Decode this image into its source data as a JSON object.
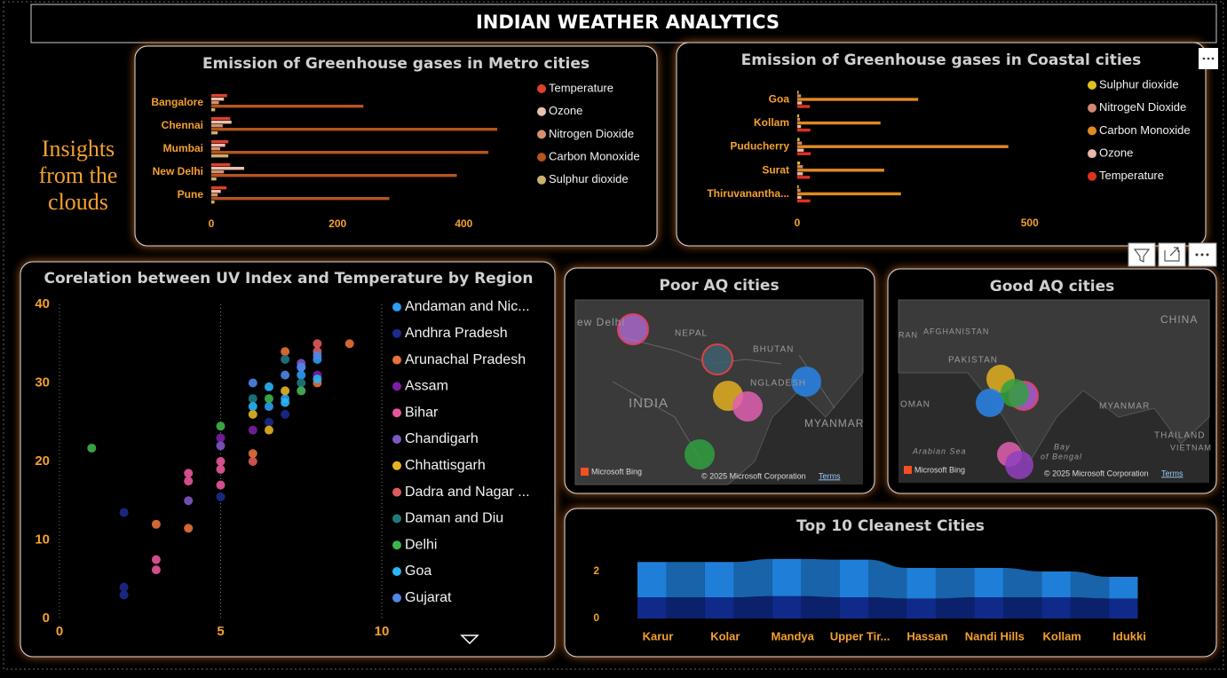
{
  "header": {
    "title": "INDIAN WEATHER ANALYTICS"
  },
  "tagline": [
    "Insights",
    "from the",
    "clouds"
  ],
  "chart_data": [
    {
      "type": "hbar",
      "title": "Emission of Greenhouse gases in Metro cities",
      "categories": [
        "Bangalore",
        "Chennai",
        "Mumbai",
        "New Delhi",
        "Pune"
      ],
      "series": [
        {
          "name": "Temperature",
          "color": "#e0402a",
          "values": [
            25,
            30,
            27,
            30,
            24
          ]
        },
        {
          "name": "Ozone",
          "color": "#e8c0b0",
          "values": [
            20,
            32,
            22,
            52,
            15
          ]
        },
        {
          "name": "Nitrogen Dioxide",
          "color": "#d8906e",
          "values": [
            12,
            18,
            14,
            20,
            10
          ]
        },
        {
          "name": "Carbon Monoxide",
          "color": "#b5541c",
          "values": [
            241,
            453,
            439,
            389,
            282
          ]
        },
        {
          "name": "Sulphur dioxide",
          "color": "#c8b070",
          "values": [
            6,
            10,
            27,
            8,
            5
          ]
        }
      ],
      "xlim": [
        0,
        460
      ],
      "xticks": [
        0,
        200,
        400
      ]
    },
    {
      "type": "hbar",
      "title": "Emission of Greenhouse gases in Coastal cities",
      "categories": [
        "Goa",
        "Kollam",
        "Puducherry",
        "Surat",
        "Thiruvanantha..."
      ],
      "series": [
        {
          "name": "Sulphur dioxide",
          "color": "#e0c020",
          "values": [
            3,
            4,
            5,
            6,
            3
          ]
        },
        {
          "name": "NitrogeN Dioxide",
          "color": "#d08870",
          "values": [
            8,
            6,
            10,
            12,
            7
          ]
        },
        {
          "name": "Carbon Monoxide",
          "color": "#e08a20",
          "values": [
            260,
            179,
            454,
            187,
            223
          ]
        },
        {
          "name": "Ozone",
          "color": "#e8b8a8",
          "values": [
            10,
            8,
            14,
            12,
            9
          ]
        },
        {
          "name": "Temperature",
          "color": "#e03020",
          "values": [
            27,
            28,
            29,
            27,
            28
          ]
        }
      ],
      "xlim": [
        0,
        850
      ],
      "xticks": [
        0,
        500
      ]
    },
    {
      "type": "scatter",
      "title": "Corelation between UV Index and Temperature by Region",
      "series": [
        {
          "name": "Andaman and Nic...",
          "color": "#2a9df4",
          "x": [
            7,
            7.5,
            7.5,
            8,
            6.5
          ],
          "values": [
            28,
            31,
            32,
            33,
            27
          ]
        },
        {
          "name": "Andhra Pradesh",
          "color": "#1c2a8c",
          "x": [
            2,
            2,
            2,
            5,
            6.5,
            7
          ],
          "values": [
            4,
            3,
            13.5,
            15.5,
            25,
            26
          ]
        },
        {
          "name": "Arunachal Pradesh",
          "color": "#e8703a",
          "x": [
            3,
            4,
            6,
            7,
            8,
            9
          ],
          "values": [
            12,
            11.5,
            21,
            34,
            30,
            35
          ]
        },
        {
          "name": "Assam",
          "color": "#7b1fa2",
          "x": [
            5,
            6,
            7.5,
            8
          ],
          "values": [
            23,
            24,
            29,
            31
          ]
        },
        {
          "name": "Bihar",
          "color": "#e8559a",
          "x": [
            3,
            3,
            4,
            4,
            5,
            5,
            5
          ],
          "values": [
            7.5,
            6.2,
            18.5,
            17.5,
            19,
            20,
            17
          ]
        },
        {
          "name": "Chandigarh",
          "color": "#7e57c2",
          "x": [
            4,
            5,
            7.5
          ],
          "values": [
            15,
            22,
            32.5
          ]
        },
        {
          "name": "Chhattisgarh",
          "color": "#e6b422",
          "x": [
            6.5,
            7,
            6
          ],
          "values": [
            24,
            29,
            26
          ]
        },
        {
          "name": "Dadra and Nagar ...",
          "color": "#e05a5a",
          "x": [
            6,
            8,
            8
          ],
          "values": [
            20,
            34,
            35
          ]
        },
        {
          "name": "Daman and Diu",
          "color": "#1f7a7f",
          "x": [
            7,
            7.5,
            6
          ],
          "values": [
            33,
            30,
            28
          ]
        },
        {
          "name": "Delhi",
          "color": "#3cb44b",
          "x": [
            1,
            5,
            6.5,
            7.5
          ],
          "values": [
            21.7,
            24.5,
            28,
            29
          ]
        },
        {
          "name": "Goa",
          "color": "#29b6f6",
          "x": [
            6,
            6.5,
            7,
            8
          ],
          "values": [
            27,
            29.5,
            27.5,
            30.5
          ]
        },
        {
          "name": "Gujarat",
          "color": "#4f86e8",
          "x": [
            6,
            7,
            7.5,
            8
          ],
          "values": [
            30,
            31,
            32,
            33.5
          ]
        }
      ],
      "xlim": [
        0,
        10
      ],
      "xticks": [
        0,
        5,
        10
      ],
      "ylim": [
        0,
        40
      ],
      "yticks": [
        0,
        10,
        20,
        30,
        40
      ],
      "grid": true
    },
    {
      "type": "ribbon",
      "title": "Top 10 Cleanest Cities",
      "categories": [
        "Karur",
        "Kolar",
        "Mandya",
        "Upper Tir...",
        "Hassan",
        "Nandi Hills",
        "Kollam",
        "Idukki"
      ],
      "series": [
        {
          "color": "#102a8a",
          "values": [
            0.9,
            0.9,
            0.95,
            0.9,
            0.85,
            0.9,
            0.9,
            0.85
          ]
        },
        {
          "color": "#1f7fd8",
          "values": [
            1.5,
            1.5,
            1.58,
            1.6,
            1.3,
            1.25,
            1.1,
            0.92
          ]
        }
      ],
      "ylim": [
        0,
        2.6
      ],
      "yticks": [
        0,
        2
      ]
    }
  ],
  "maps": [
    {
      "title": "Poor AQ cities",
      "labels": [
        "ew Delhi",
        "NEPAL",
        "BHUTAN",
        "INDIA",
        "NGLADESH",
        "MYANMAR"
      ],
      "credits": [
        "Microsoft Bing",
        "© 2025 Microsoft Corporation",
        "Terms"
      ]
    },
    {
      "title": "Good AQ cities",
      "labels": [
        "CHINA",
        "AFGHANISTAN",
        "PAKISTAN",
        "RAN",
        "OMAN",
        "Arabian Sea",
        "Bay",
        "of Bengal",
        "MYANMAR",
        "THAILAND",
        "VIETNAM"
      ],
      "credits": [
        "Microsoft Bing",
        "© 2025 Microsoft Corporation",
        "Terms"
      ]
    }
  ]
}
